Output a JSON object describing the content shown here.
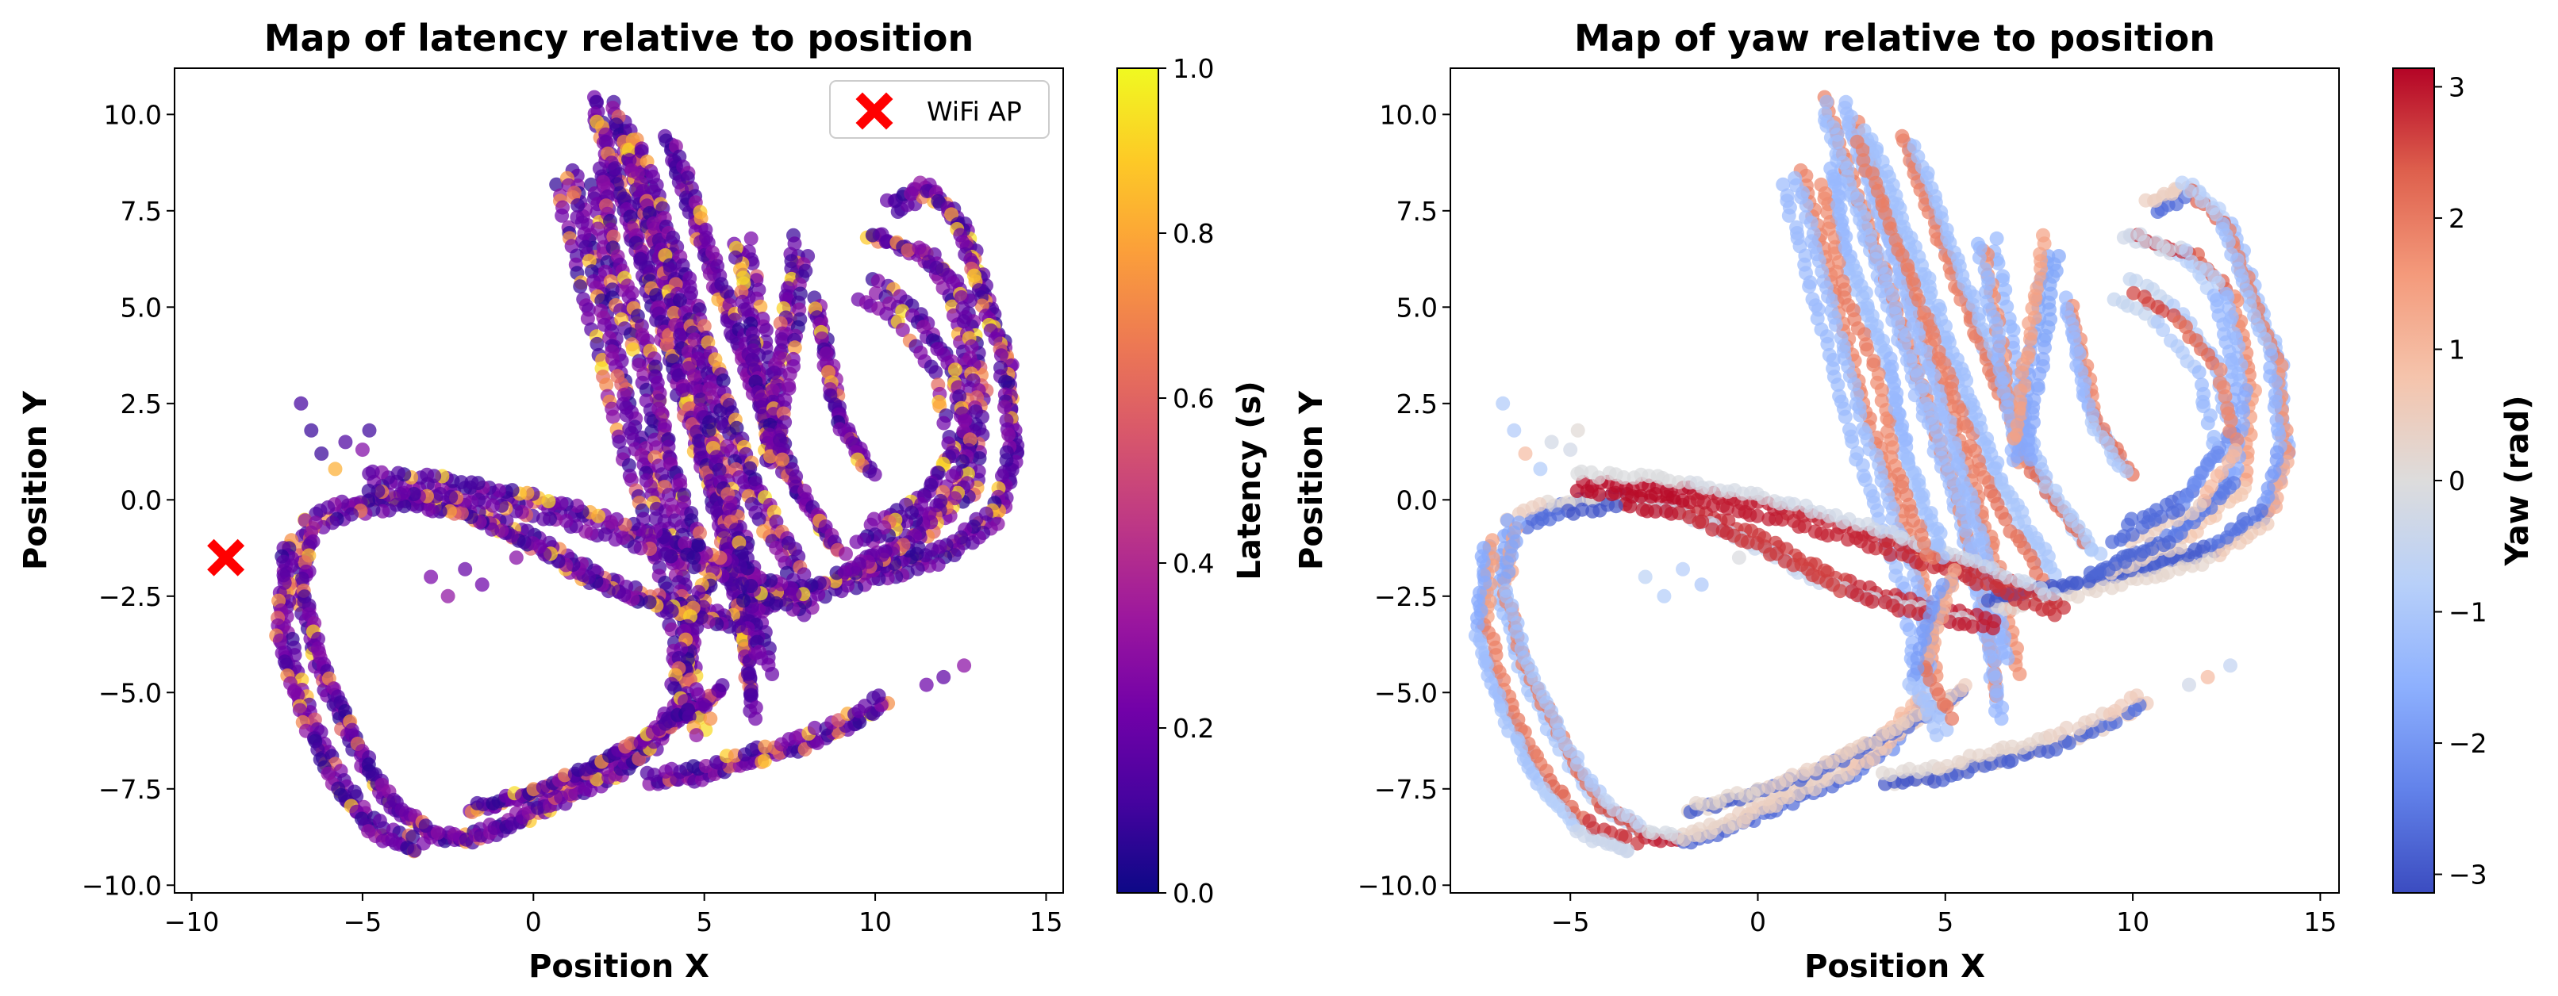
{
  "chart_data": [
    {
      "type": "scatter",
      "title": "Map of latency relative to position",
      "xlabel": "Position X",
      "ylabel": "Position Y",
      "xlim": [
        -10.5,
        15.5
      ],
      "ylim": [
        -10.2,
        11.2
      ],
      "xticks": [
        -10,
        -5,
        0,
        5,
        10,
        15
      ],
      "xtick_labels": [
        "−10",
        "−5",
        "0",
        "5",
        "10",
        "15"
      ],
      "yticks": [
        -10,
        -7.5,
        -5,
        -2.5,
        0,
        2.5,
        5,
        7.5,
        10
      ],
      "ytick_labels": [
        "−10.0",
        "−7.5",
        "−5.0",
        "−2.5",
        "0.0",
        "2.5",
        "5.0",
        "7.5",
        "10.0"
      ],
      "colormap": "plasma",
      "colorbar": {
        "label": "Latency (s)",
        "range": [
          0,
          1
        ],
        "ticks": [
          0,
          0.2,
          0.4,
          0.6,
          0.8,
          1.0
        ],
        "tick_labels": [
          "0.0",
          "0.2",
          "0.4",
          "0.6",
          "0.8",
          "1.0"
        ],
        "stops": [
          "#0d0887",
          "#46039f",
          "#7201a8",
          "#9c179e",
          "#bd3786",
          "#d8576b",
          "#ed7953",
          "#fb9f3a",
          "#fdca26",
          "#f0f921"
        ]
      },
      "marker": {
        "name": "WiFi AP",
        "x": -9,
        "y": -1.5,
        "color": "#ff0000"
      },
      "legend_loc": "top-right"
    },
    {
      "type": "scatter",
      "title": "Map of yaw relative to position",
      "xlabel": "Position X",
      "ylabel": "Position Y",
      "xlim": [
        -8.2,
        15.5
      ],
      "ylim": [
        -10.2,
        11.2
      ],
      "xticks": [
        -5,
        0,
        5,
        10,
        15
      ],
      "xtick_labels": [
        "−5",
        "0",
        "5",
        "10",
        "15"
      ],
      "yticks": [
        -10,
        -7.5,
        -5,
        -2.5,
        0,
        2.5,
        5,
        7.5,
        10
      ],
      "ytick_labels": [
        "−10.0",
        "−7.5",
        "−5.0",
        "−2.5",
        "0.0",
        "2.5",
        "5.0",
        "7.5",
        "10.0"
      ],
      "colormap": "coolwarm",
      "colorbar": {
        "label": "Yaw (rad)",
        "range": [
          -3.1416,
          3.1416
        ],
        "ticks": [
          -3,
          -2,
          -1,
          0,
          1,
          2,
          3
        ],
        "tick_labels": [
          "−3",
          "−2",
          "−1",
          "0",
          "1",
          "2",
          "3"
        ],
        "stops": [
          "#3b4cc0",
          "#6282ea",
          "#8db0fe",
          "#b8d0f9",
          "#dddcdc",
          "#f5c4ac",
          "#f49a7b",
          "#de604d",
          "#b40426"
        ]
      }
    }
  ],
  "trajectory": {
    "description_points": "approximate robot path waypoints in data units (x, y)",
    "loops": [
      [
        [
          1.0,
          8.5
        ],
        [
          2.0,
          5.0
        ],
        [
          2.8,
          2.0
        ],
        [
          3.5,
          0.0
        ],
        [
          4.2,
          -2.0
        ],
        [
          4.6,
          -4.8
        ]
      ],
      [
        [
          1.5,
          10.2
        ],
        [
          3.0,
          6.0
        ],
        [
          4.2,
          2.5
        ],
        [
          5.2,
          -0.5
        ],
        [
          5.8,
          -3.0
        ],
        [
          6.2,
          -5.6
        ]
      ],
      [
        [
          2.5,
          10.0
        ],
        [
          4.0,
          5.5
        ],
        [
          5.5,
          1.0
        ],
        [
          6.5,
          -2.5
        ],
        [
          6.8,
          -4.5
        ]
      ],
      [
        [
          3.0,
          9.5
        ],
        [
          4.8,
          5.0
        ],
        [
          6.5,
          0.5
        ],
        [
          8.0,
          -2.0
        ]
      ],
      [
        [
          4.0,
          9.2
        ],
        [
          5.8,
          4.5
        ],
        [
          7.5,
          0.5
        ],
        [
          9.0,
          -1.5
        ]
      ],
      [
        [
          6.0,
          6.6
        ],
        [
          6.5,
          4.0
        ],
        [
          7.0,
          0.8
        ]
      ],
      [
        [
          8.0,
          6.5
        ],
        [
          7.6,
          4.0
        ],
        [
          7.2,
          1.0
        ]
      ],
      [
        [
          8.3,
          5.0
        ],
        [
          9.0,
          2.0
        ],
        [
          10.0,
          0.5
        ]
      ],
      [
        [
          10.5,
          7.5
        ],
        [
          11.5,
          8.0
        ],
        [
          12.5,
          7.0
        ],
        [
          13.2,
          5.0
        ],
        [
          13.8,
          3.5
        ],
        [
          14.0,
          1.0
        ],
        [
          13.5,
          -0.5
        ],
        [
          12.0,
          -1.5
        ],
        [
          10.0,
          -2.0
        ],
        [
          8.0,
          -2.5
        ],
        [
          6.0,
          -2.8
        ]
      ],
      [
        [
          10.0,
          7.0
        ],
        [
          11.5,
          6.5
        ],
        [
          12.5,
          5.5
        ],
        [
          13.0,
          3.0
        ],
        [
          12.8,
          0.5
        ],
        [
          11.0,
          -1.0
        ],
        [
          9.0,
          -1.8
        ]
      ],
      [
        [
          9.8,
          5.5
        ],
        [
          11.0,
          4.8
        ],
        [
          12.0,
          3.5
        ],
        [
          12.5,
          1.5
        ],
        [
          11.5,
          0.0
        ],
        [
          9.5,
          -1.0
        ]
      ],
      [
        [
          6.0,
          -3.0
        ],
        [
          4.0,
          -2.6
        ],
        [
          2.0,
          -2.0
        ],
        [
          0.5,
          -1.2
        ],
        [
          -1.0,
          -0.5
        ],
        [
          -2.5,
          0.0
        ],
        [
          -4.0,
          0.2
        ],
        [
          -5.5,
          0.0
        ],
        [
          -6.5,
          -0.5
        ]
      ],
      [
        [
          8.0,
          -2.8
        ],
        [
          5.5,
          -1.8
        ],
        [
          3.0,
          -1.0
        ],
        [
          0.5,
          -0.3
        ],
        [
          -2.0,
          0.2
        ],
        [
          -5.0,
          0.4
        ]
      ],
      [
        [
          -6.5,
          -0.8
        ],
        [
          -6.8,
          -2.5
        ],
        [
          -6.2,
          -4.5
        ],
        [
          -5.2,
          -6.5
        ],
        [
          -4.2,
          -8.0
        ],
        [
          -3.0,
          -8.8
        ],
        [
          -2.0,
          -9.0
        ],
        [
          -0.5,
          -8.5
        ],
        [
          1.0,
          -7.8
        ],
        [
          2.5,
          -7.2
        ],
        [
          3.5,
          -6.5
        ],
        [
          4.5,
          -5.2
        ]
      ],
      [
        [
          -7.0,
          -1.2
        ],
        [
          -7.2,
          -3.5
        ],
        [
          -6.5,
          -5.5
        ],
        [
          -5.5,
          -7.5
        ],
        [
          -4.5,
          -8.6
        ],
        [
          -3.0,
          -9.2
        ]
      ],
      [
        [
          -1.5,
          -8.0
        ],
        [
          0.5,
          -7.5
        ],
        [
          2.0,
          -6.9
        ],
        [
          3.5,
          -6.2
        ],
        [
          4.8,
          -5.5
        ],
        [
          6.0,
          -4.8
        ]
      ],
      [
        [
          3.5,
          -7.2
        ],
        [
          5.0,
          -7.0
        ],
        [
          6.5,
          -6.6
        ],
        [
          8.0,
          -6.2
        ],
        [
          9.5,
          -5.6
        ],
        [
          10.5,
          -5.0
        ]
      ],
      [
        [
          5.0,
          -2.0
        ],
        [
          4.2,
          -4.5
        ],
        [
          5.0,
          -6.0
        ]
      ],
      [
        [
          2.0,
          8.5
        ],
        [
          2.5,
          6.0
        ],
        [
          3.5,
          3.5
        ],
        [
          4.0,
          1.0
        ],
        [
          5.0,
          -1.5
        ]
      ]
    ],
    "isolated_clusters": [
      [
        [
          -6.8,
          2.5
        ],
        [
          -6.5,
          1.8
        ],
        [
          -6.2,
          1.2
        ],
        [
          -5.8,
          0.8
        ],
        [
          -5.5,
          1.5
        ],
        [
          -5.0,
          1.3
        ],
        [
          -4.8,
          1.8
        ]
      ],
      [
        [
          -3.0,
          -2.0
        ],
        [
          -2.5,
          -2.5
        ],
        [
          -2.0,
          -1.8
        ],
        [
          -1.5,
          -2.2
        ],
        [
          -0.5,
          -1.5
        ]
      ],
      [
        [
          11.5,
          -4.8
        ],
        [
          12.0,
          -4.6
        ],
        [
          12.6,
          -4.3
        ]
      ]
    ]
  }
}
